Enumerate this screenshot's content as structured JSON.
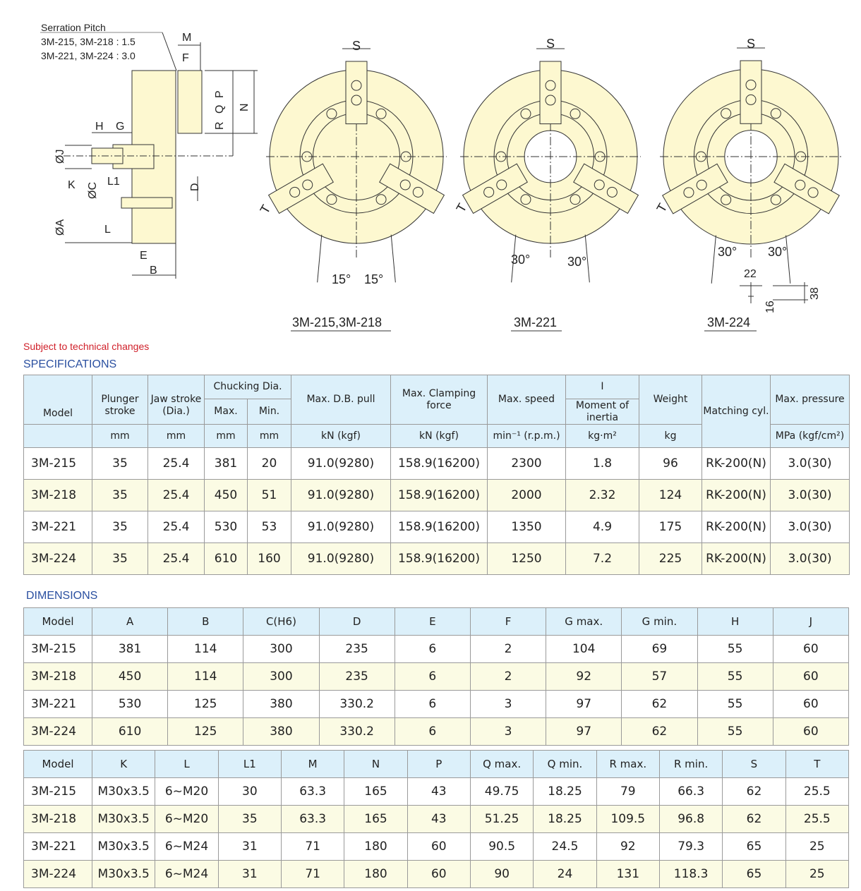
{
  "drawing": {
    "serration_title": "Serration Pitch",
    "serration_line1": "3M-215, 3M-218 : 1.5",
    "serration_line2": "3M-221, 3M-224 : 3.0",
    "side_labels": {
      "M": "M",
      "F": "F",
      "P": "P",
      "Q": "Q",
      "R": "R",
      "N": "N",
      "H": "H",
      "G": "G",
      "J": "ØJ",
      "K": "K",
      "C": "ØC",
      "L1": "L1",
      "D": "D",
      "L": "L",
      "A": "ØA",
      "E": "E",
      "B": "B"
    },
    "views": [
      {
        "caption": "3M-215,3M-218",
        "s_label": "S",
        "t_label": "T",
        "angle_left": "15°",
        "angle_right": "15°"
      },
      {
        "caption": "3M-221",
        "s_label": "S",
        "t_label": "T",
        "angle_left": "30°",
        "angle_right": "30°"
      },
      {
        "caption": "3M-224",
        "s_label": "S",
        "t_label": "T",
        "angle_left": "30°",
        "angle_right": "30°",
        "detail_22": "22",
        "detail_38": "38",
        "detail_16": "16"
      }
    ],
    "fill_color": "#fdf8d0"
  },
  "note": "Subject to technical changes",
  "specifications": {
    "title": "SPECIFICATIONS",
    "headers": {
      "model": "Model",
      "plunger": "Plunger stroke",
      "jaw": "Jaw stroke (Dia.)",
      "chucking": "Chucking Dia.",
      "max": "Max.",
      "min": "Min.",
      "pull": "Max. D.B. pull",
      "clamp": "Max. Clamping force",
      "speed": "Max. speed",
      "inertia_symbol": "I",
      "inertia": "Moment of inertia",
      "weight": "Weight",
      "cyl": "Matching cyl.",
      "pressure": "Max. pressure"
    },
    "units": [
      "mm",
      "mm",
      "mm",
      "mm",
      "kN (kgf)",
      "kN (kgf)",
      "min⁻¹ (r.p.m.)",
      "kg·m²",
      "kg",
      "MPa (kgf/cm²)"
    ],
    "rows": [
      [
        "3M-215",
        "35",
        "25.4",
        "381",
        "20",
        "91.0(9280)",
        "158.9(16200)",
        "2300",
        "1.8",
        "96",
        "RK-200(N)",
        "3.0(30)"
      ],
      [
        "3M-218",
        "35",
        "25.4",
        "450",
        "51",
        "91.0(9280)",
        "158.9(16200)",
        "2000",
        "2.32",
        "124",
        "RK-200(N)",
        "3.0(30)"
      ],
      [
        "3M-221",
        "35",
        "25.4",
        "530",
        "53",
        "91.0(9280)",
        "158.9(16200)",
        "1350",
        "4.9",
        "175",
        "RK-200(N)",
        "3.0(30)"
      ],
      [
        "3M-224",
        "35",
        "25.4",
        "610",
        "160",
        "91.0(9280)",
        "158.9(16200)",
        "1250",
        "7.2",
        "225",
        "RK-200(N)",
        "3.0(30)"
      ]
    ]
  },
  "dimensions": {
    "title": "DIMENSIONS",
    "table1": {
      "headers": [
        "Model",
        "A",
        "B",
        "C(H6)",
        "D",
        "E",
        "F",
        "G max.",
        "G min.",
        "H",
        "J"
      ],
      "rows": [
        [
          "3M-215",
          "381",
          "114",
          "300",
          "235",
          "6",
          "2",
          "104",
          "69",
          "55",
          "60"
        ],
        [
          "3M-218",
          "450",
          "114",
          "300",
          "235",
          "6",
          "2",
          "92",
          "57",
          "55",
          "60"
        ],
        [
          "3M-221",
          "530",
          "125",
          "380",
          "330.2",
          "6",
          "3",
          "97",
          "62",
          "55",
          "60"
        ],
        [
          "3M-224",
          "610",
          "125",
          "380",
          "330.2",
          "6",
          "3",
          "97",
          "62",
          "55",
          "60"
        ]
      ]
    },
    "table2": {
      "headers": [
        "Model",
        "K",
        "L",
        "L1",
        "M",
        "N",
        "P",
        "Q max.",
        "Q min.",
        "R max.",
        "R min.",
        "S",
        "T"
      ],
      "rows": [
        [
          "3M-215",
          "M30x3.5",
          "6~M20",
          "30",
          "63.3",
          "165",
          "43",
          "49.75",
          "18.25",
          "79",
          "66.3",
          "62",
          "25.5"
        ],
        [
          "3M-218",
          "M30x3.5",
          "6~M20",
          "35",
          "63.3",
          "165",
          "43",
          "51.25",
          "18.25",
          "109.5",
          "96.8",
          "62",
          "25.5"
        ],
        [
          "3M-221",
          "M30x3.5",
          "6~M24",
          "31",
          "71",
          "180",
          "60",
          "90.5",
          "24.5",
          "92",
          "79.3",
          "65",
          "25"
        ],
        [
          "3M-224",
          "M30x3.5",
          "6~M24",
          "31",
          "71",
          "180",
          "60",
          "90",
          "24",
          "131",
          "118.3",
          "65",
          "25"
        ]
      ]
    }
  },
  "colors": {
    "header_bg": "#dcf0fa",
    "alt_row_bg": "#fbfbe4",
    "title_blue": "#2a4fa0",
    "note_red": "#d0202a"
  }
}
